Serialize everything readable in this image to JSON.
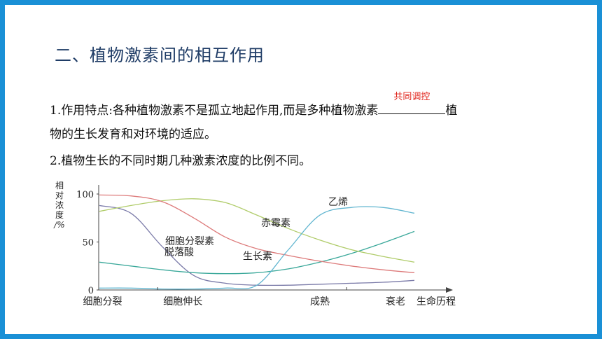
{
  "heading": "二、植物激素间的相互作用",
  "point1": {
    "before": "1.作用特点:各种植物激素不是孤立地起作用,而是多种植物激素",
    "answer": "共同调控",
    "after": "植",
    "line2": "物的生长发育和对环境的适应。"
  },
  "point2": "2.植物生长的不同时期几种激素浓度的比例不同。",
  "chart_data": {
    "type": "line",
    "ylabel": [
      "相",
      "对",
      "浓",
      "度",
      "/%"
    ],
    "xlabel": "生命历程",
    "yticks": [
      "100",
      "50",
      "0"
    ],
    "ylim": [
      0,
      100
    ],
    "stages": [
      "细胞分裂",
      "细胞伸长",
      "成熟",
      "衰老"
    ],
    "x": [
      0,
      1,
      2,
      3,
      4,
      5,
      6,
      7,
      8,
      9,
      10
    ],
    "series": [
      {
        "name": "脱落酸",
        "color": "#7a7aa8",
        "values": [
          88,
          80,
          45,
          15,
          7,
          5,
          5,
          6,
          7,
          8,
          10
        ]
      },
      {
        "name": "细胞分裂素",
        "color": "#3aa89a",
        "values": [
          29,
          25,
          21,
          18,
          17,
          18,
          22,
          29,
          38,
          49,
          61
        ]
      },
      {
        "name": "赤霉素",
        "color": "#b0cc6a",
        "values": [
          82,
          88,
          93,
          95,
          91,
          78,
          64,
          52,
          42,
          35,
          29
        ]
      },
      {
        "name": "生长素",
        "color": "#dd7a7a",
        "values": [
          99,
          98,
          92,
          75,
          55,
          43,
          36,
          30,
          25,
          21,
          18
        ]
      },
      {
        "name": "乙烯",
        "color": "#62b6d0",
        "values": [
          2,
          2,
          1,
          1,
          2,
          5,
          42,
          78,
          86,
          86,
          80
        ]
      }
    ]
  }
}
